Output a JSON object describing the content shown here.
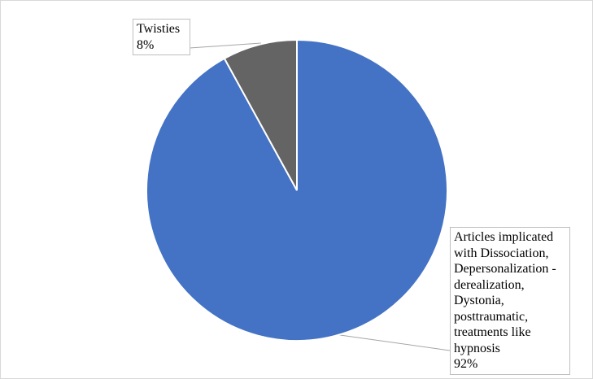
{
  "chart_data": {
    "type": "pie",
    "categories": [
      "Articles implicated with Dissociation, Depersonalization -derealization, Dystonia, posttraumatic, treatments like hypnosis",
      "Twisties"
    ],
    "values": [
      92,
      8
    ],
    "value_labels": [
      "92%",
      "8%"
    ],
    "colors": [
      "#4472c4",
      "#646464"
    ]
  }
}
